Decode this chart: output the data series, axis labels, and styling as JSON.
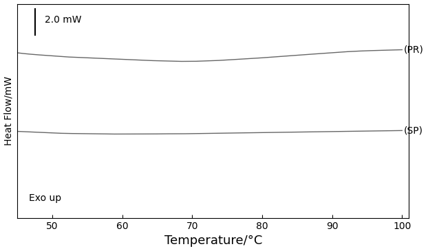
{
  "xlabel": "Temperature/°C",
  "ylabel": "Heat Flow/mW",
  "scale_label": "2.0 mW",
  "annotation_exo": "Exo up",
  "label_PR": "(PR)",
  "label_SP": "(SP)",
  "xlim": [
    45,
    101
  ],
  "background_color": "#ffffff",
  "line_color": "#666666",
  "xticks": [
    50,
    60,
    70,
    80,
    90,
    100
  ],
  "PR_x": [
    45,
    48,
    50,
    52,
    54,
    56,
    58,
    60,
    62,
    64,
    65,
    66,
    67,
    68,
    69,
    70,
    71,
    72,
    73,
    74,
    75,
    77,
    79,
    81,
    83,
    85,
    87,
    89,
    91,
    93,
    95,
    97,
    99,
    100
  ],
  "PR_y": [
    0.81,
    0.8,
    0.795,
    0.79,
    0.787,
    0.784,
    0.781,
    0.778,
    0.775,
    0.772,
    0.771,
    0.77,
    0.769,
    0.768,
    0.768,
    0.768,
    0.769,
    0.77,
    0.771,
    0.773,
    0.775,
    0.779,
    0.783,
    0.788,
    0.793,
    0.798,
    0.803,
    0.808,
    0.813,
    0.817,
    0.82,
    0.822,
    0.824,
    0.825
  ],
  "SP_x": [
    45,
    48,
    50,
    52,
    54,
    56,
    58,
    60,
    62,
    64,
    66,
    68,
    70,
    72,
    74,
    76,
    78,
    80,
    82,
    84,
    86,
    88,
    90,
    92,
    94,
    96,
    98,
    100
  ],
  "SP_y": [
    0.425,
    0.42,
    0.417,
    0.415,
    0.414,
    0.413,
    0.412,
    0.412,
    0.412,
    0.412,
    0.413,
    0.413,
    0.414,
    0.415,
    0.416,
    0.417,
    0.418,
    0.419,
    0.42,
    0.421,
    0.422,
    0.423,
    0.424,
    0.425,
    0.426,
    0.427,
    0.428,
    0.429
  ],
  "ylim": [
    0.0,
    1.05
  ],
  "xlabel_fontsize": 13,
  "ylabel_fontsize": 10,
  "tick_fontsize": 10,
  "annotation_fontsize": 10,
  "label_fontsize": 10
}
